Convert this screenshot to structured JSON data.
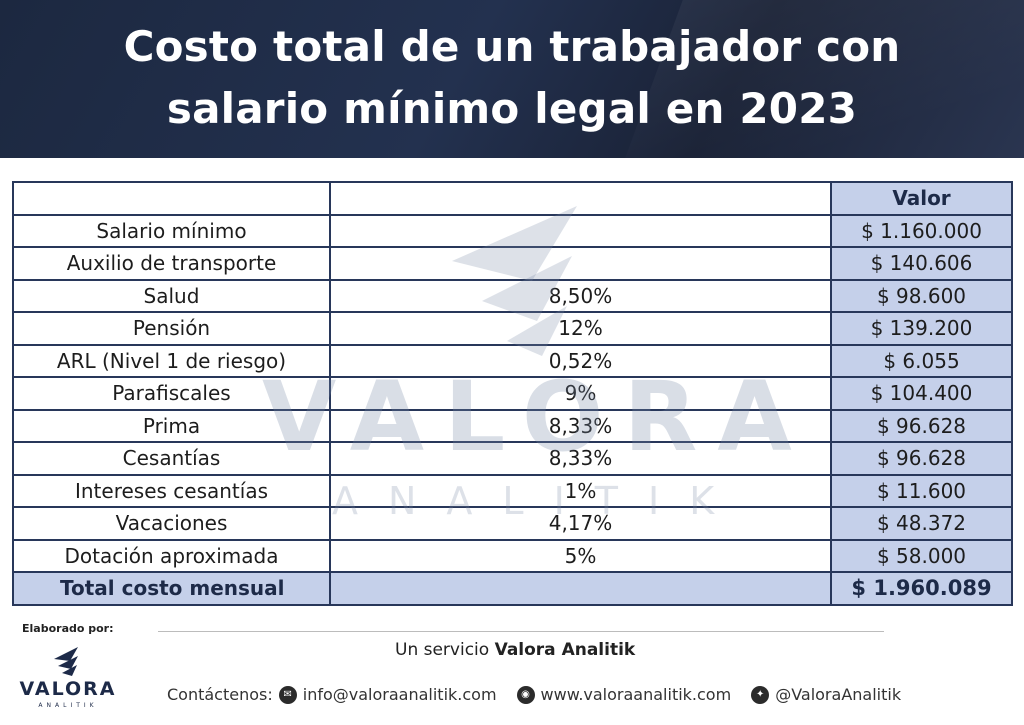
{
  "header": {
    "title_line1": "Costo total de un trabajador con",
    "title_line2": "salario mínimo legal en 2023"
  },
  "table": {
    "header_value": "Valor",
    "rows": [
      {
        "concept": "Salario mínimo",
        "rate": "",
        "value": "$ 1.160.000"
      },
      {
        "concept": "Auxilio de transporte",
        "rate": "",
        "value": "$ 140.606"
      },
      {
        "concept": "Salud",
        "rate": "8,50%",
        "value": "$ 98.600"
      },
      {
        "concept": "Pensión",
        "rate": "12%",
        "value": "$ 139.200"
      },
      {
        "concept": "ARL (Nivel 1 de riesgo)",
        "rate": "0,52%",
        "value": "$ 6.055"
      },
      {
        "concept": "Parafiscales",
        "rate": "9%",
        "value": "$ 104.400"
      },
      {
        "concept": "Prima",
        "rate": "8,33%",
        "value": "$ 96.628"
      },
      {
        "concept": "Cesantías",
        "rate": "8,33%",
        "value": "$ 96.628"
      },
      {
        "concept": "Intereses cesantías",
        "rate": "1%",
        "value": "$ 11.600"
      },
      {
        "concept": "Vacaciones",
        "rate": "4,17%",
        "value": "$ 48.372"
      },
      {
        "concept": "Dotación aproximada",
        "rate": "5%",
        "value": "$ 58.000"
      }
    ],
    "total_label": "Total costo mensual",
    "total_value": "$ 1.960.089"
  },
  "watermark": {
    "word": "VALORA",
    "sub": "ANALITIK"
  },
  "footer": {
    "made_by": "Elaborado por:",
    "logo_word": "VALORA",
    "logo_sub": "ANALITIK",
    "service_prefix": "Un servicio ",
    "service_brand": "Valora Analitik",
    "contact_label": "Contáctenos:",
    "email": "info@valoraanalitik.com",
    "website": "www.valoraanalitik.com",
    "twitter": "@ValoraAnalitik"
  },
  "colors": {
    "navy": "#1d2a48",
    "table_highlight": "#c5d0ea",
    "border": "#28375a"
  },
  "icons": [
    "mail-icon",
    "globe-icon",
    "twitter-icon",
    "valora-logo-icon"
  ]
}
